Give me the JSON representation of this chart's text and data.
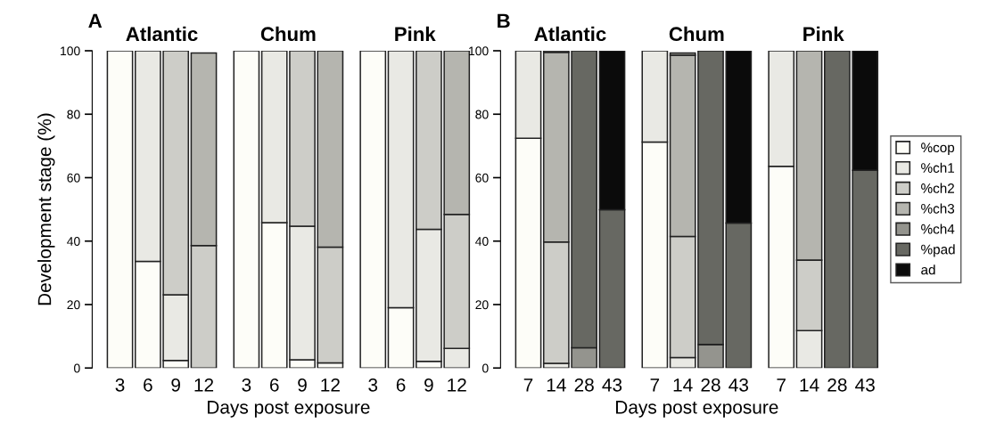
{
  "chart_data": [
    {
      "type": "bar",
      "stacked": true,
      "title": "Atlantic",
      "ylabel": "Development stage (%)",
      "annotations": [
        "A"
      ],
      "categories": [
        "3",
        "6",
        "9",
        "12"
      ],
      "ylim": [
        0,
        100
      ],
      "yticks": [
        0,
        20,
        40,
        60,
        80,
        100
      ],
      "series": [
        {
          "color": "#fdfdf8",
          "values": [
            100,
            33.6,
            2.4,
            0
          ]
        },
        {
          "color": "#e9e9e4",
          "values": [
            0,
            66.4,
            20.7,
            null
          ]
        },
        {
          "color": "#cdcdc8",
          "values": [
            0,
            0,
            76.9,
            38.6
          ]
        },
        {
          "color": "#b5b5af",
          "values": [
            0,
            0,
            0,
            60.7
          ]
        }
      ]
    },
    {
      "type": "bar",
      "stacked": true,
      "title": "Chum",
      "xlabel": "Days post exposure",
      "tick_labels": "x",
      "categories": [
        "3",
        "6",
        "9",
        "12"
      ],
      "ylim": [
        0,
        100
      ],
      "yticks": [
        0,
        20,
        40,
        60,
        80,
        100
      ],
      "series": [
        {
          "color": "#fdfdf8",
          "values": [
            100,
            45.8,
            2.6,
            1.6
          ]
        },
        {
          "color": "#e9e9e4",
          "values": [
            0,
            54.2,
            42.1,
            0
          ]
        },
        {
          "color": "#cdcdc8",
          "values": [
            0,
            0,
            55.3,
            36.5
          ]
        },
        {
          "color": "#b5b5af",
          "values": [
            0,
            0,
            0,
            61.9
          ]
        }
      ]
    },
    {
      "type": "bar",
      "stacked": true,
      "title": "Pink",
      "tick_labels": "x",
      "categories": [
        "3",
        "6",
        "9",
        "12"
      ],
      "ylim": [
        0,
        100
      ],
      "yticks": [
        0,
        20,
        40,
        60,
        80,
        100
      ],
      "series": [
        {
          "color": "#fdfdf8",
          "values": [
            100,
            19.0,
            2.1,
            0
          ]
        },
        {
          "color": "#e9e9e4",
          "values": [
            0,
            81.0,
            41.6,
            6.2
          ]
        },
        {
          "color": "#cdcdc8",
          "values": [
            0,
            0,
            56.3,
            42.2
          ]
        },
        {
          "color": "#b5b5af",
          "values": [
            0,
            0,
            0,
            51.6
          ]
        }
      ]
    },
    {
      "type": "bar",
      "stacked": true,
      "title": "Atlantic",
      "annotations": [
        "B"
      ],
      "categories": [
        "7",
        "14",
        "28",
        "43"
      ],
      "ylim": [
        0,
        100
      ],
      "yticks": [
        0,
        20,
        40,
        60,
        80,
        100
      ],
      "series": [
        {
          "color": "#fdfdf8",
          "values": [
            72.4,
            0,
            0,
            0
          ]
        },
        {
          "color": "#e9e9e4",
          "values": [
            27.6,
            1.5,
            0,
            0
          ]
        },
        {
          "color": "#cdcdc8",
          "values": [
            0,
            38.2,
            0,
            0
          ]
        },
        {
          "color": "#b5b5af",
          "values": [
            0,
            59.8,
            0,
            0
          ]
        },
        {
          "color": "#94948e",
          "values": [
            0,
            0.5,
            6.4,
            0
          ]
        },
        {
          "color": "#676862",
          "values": [
            0,
            0,
            93.6,
            49.9
          ]
        },
        {
          "color": "#0b0b0b",
          "values": [
            0,
            0,
            0,
            50.1
          ]
        }
      ]
    },
    {
      "type": "bar",
      "stacked": true,
      "title": "Chum",
      "xlabel": "Days post exposure",
      "tick_labels": "x",
      "categories": [
        "7",
        "14",
        "28",
        "43"
      ],
      "ylim": [
        0,
        100
      ],
      "yticks": [
        0,
        20,
        40,
        60,
        80,
        100
      ],
      "series": [
        {
          "color": "#fdfdf8",
          "values": [
            71.2,
            null,
            0,
            0
          ]
        },
        {
          "color": "#e9e9e4",
          "values": [
            28.8,
            3.3,
            0,
            0
          ]
        },
        {
          "color": "#cdcdc8",
          "values": [
            0,
            38.2,
            0,
            0
          ]
        },
        {
          "color": "#b5b5af",
          "values": [
            0,
            57.1,
            0,
            0
          ]
        },
        {
          "color": "#94948e",
          "values": [
            0,
            0.7,
            7.4,
            0
          ]
        },
        {
          "color": "#676862",
          "values": [
            0,
            0,
            92.6,
            45.7
          ]
        },
        {
          "color": "#0b0b0b",
          "values": [
            0,
            0,
            0,
            54.3
          ]
        }
      ]
    },
    {
      "type": "bar",
      "stacked": true,
      "title": "Pink",
      "tick_labels": "x",
      "legend": "right",
      "categories": [
        "7",
        "14",
        "28",
        "43"
      ],
      "ylim": [
        0,
        100
      ],
      "yticks": [
        0,
        20,
        40,
        60,
        80,
        100
      ],
      "series": [
        {
          "name": "%cop",
          "color": "#fdfdf8",
          "values": [
            63.6,
            0,
            0,
            0
          ]
        },
        {
          "name": "%ch1",
          "color": "#e9e9e4",
          "values": [
            36.4,
            11.8,
            0,
            0
          ]
        },
        {
          "name": "%ch2",
          "color": "#cdcdc8",
          "values": [
            0,
            22.2,
            0,
            0
          ]
        },
        {
          "name": "%ch3",
          "color": "#b5b5af",
          "values": [
            0,
            66.0,
            0,
            0
          ]
        },
        {
          "name": "%ch4",
          "color": "#94948e",
          "values": [
            0,
            0,
            0,
            0
          ]
        },
        {
          "name": "%pad",
          "color": "#676862",
          "values": [
            0,
            0,
            100,
            62.3
          ]
        },
        {
          "name": "ad",
          "color": "#0b0b0b",
          "values": [
            0,
            0,
            0,
            37.7
          ]
        }
      ]
    }
  ]
}
